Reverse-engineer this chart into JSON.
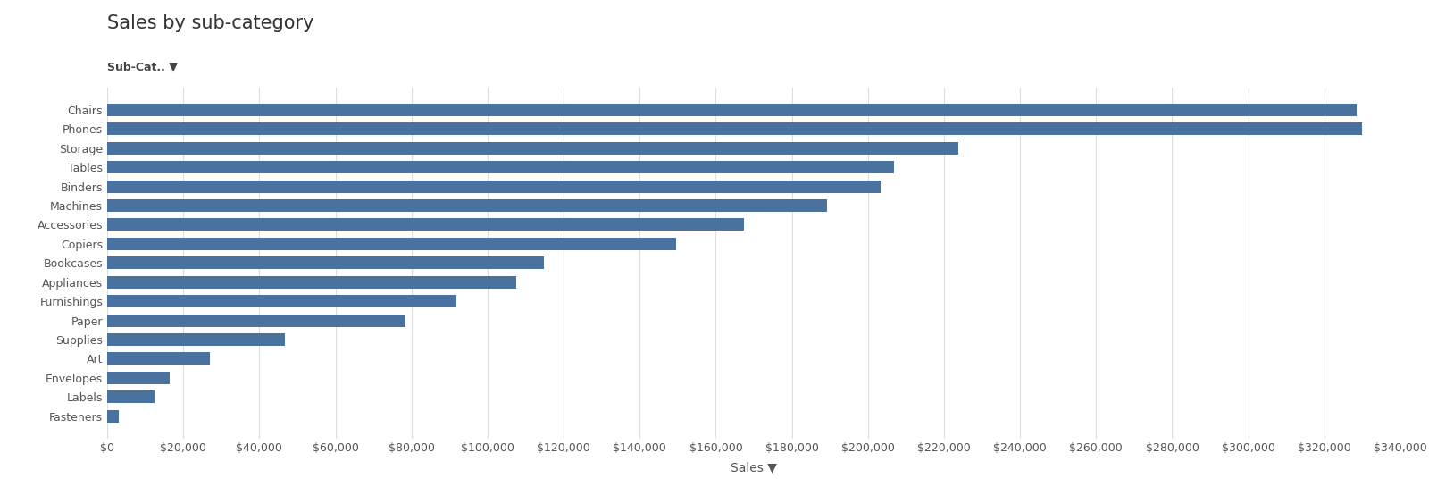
{
  "title": "Sales by sub-category",
  "xlabel": "Sales ▼",
  "ylabel_filter": "Sub-Cat.. ▼",
  "bar_color": "#4a72a0",
  "background_color": "#ffffff",
  "categories": [
    "Chairs",
    "Phones",
    "Storage",
    "Tables",
    "Binders",
    "Machines",
    "Accessories",
    "Copiers",
    "Bookcases",
    "Appliances",
    "Furnishings",
    "Paper",
    "Supplies",
    "Art",
    "Envelopes",
    "Labels",
    "Fasteners"
  ],
  "values": [
    328449,
    330007,
    223844,
    206966,
    203413,
    189238,
    167380,
    149528,
    114880,
    107532,
    91705,
    78479,
    46674,
    27119,
    16476,
    12486,
    3024
  ],
  "xlim": [
    0,
    340000
  ],
  "xtick_step": 20000,
  "title_fontsize": 15,
  "label_fontsize": 10,
  "tick_fontsize": 9,
  "filter_label_fontsize": 9
}
